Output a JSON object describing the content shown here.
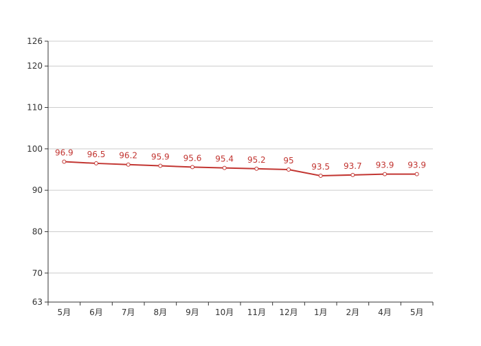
{
  "colors": {
    "series": "#c23531",
    "grid": "#cccccc",
    "axis": "#333333",
    "text": "#333333",
    "background": "#ffffff"
  },
  "chart_data": {
    "type": "line",
    "title": "",
    "xlabel": "",
    "ylabel": "",
    "categories": [
      "5月",
      "6月",
      "7月",
      "8月",
      "9月",
      "10月",
      "11月",
      "12月",
      "1月",
      "2月",
      "4月",
      "5月"
    ],
    "series": [
      {
        "values": [
          96.9,
          96.5,
          96.2,
          95.9,
          95.6,
          95.4,
          95.2,
          95,
          93.5,
          93.7,
          93.9,
          93.9
        ],
        "data_labels": [
          "96.9",
          "96.5",
          "96.2",
          "95.9",
          "95.6",
          "95.4",
          "95.2",
          "95",
          "93.5",
          "93.7",
          "93.9",
          "93.9"
        ]
      }
    ],
    "ylim": [
      63,
      126
    ],
    "y_ticks": [
      63,
      70,
      80,
      90,
      100,
      110,
      120,
      126
    ],
    "y_tick_labels": [
      "63",
      "70",
      "80",
      "90",
      "100",
      "110",
      "120",
      "126"
    ],
    "grid": true,
    "legend": "none"
  }
}
